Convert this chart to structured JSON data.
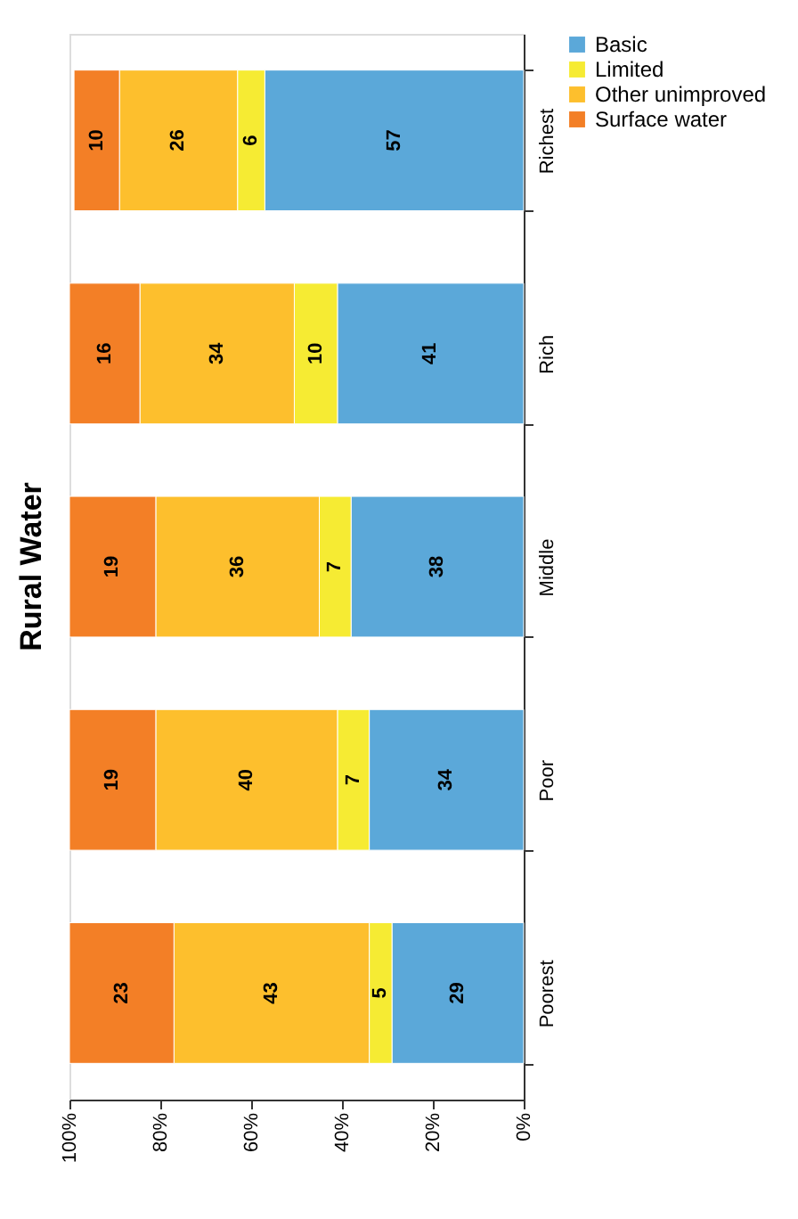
{
  "chart_data": {
    "type": "bar",
    "title": "Rural Water",
    "orientation": "horizontal",
    "stacked": true,
    "categories": [
      "Richest",
      "Rich",
      "Middle",
      "Poor",
      "Poorest"
    ],
    "series": [
      {
        "name": "Basic",
        "color": "#5ba8d9",
        "values": [
          57,
          41,
          38,
          34,
          29
        ],
        "value_labels": [
          "57",
          "41",
          "38",
          "34",
          "29"
        ]
      },
      {
        "name": "Limited",
        "color": "#f6eb33",
        "values": [
          6,
          9.5,
          7,
          7,
          5
        ],
        "value_labels": [
          "6",
          "10",
          "7",
          "7",
          "5"
        ]
      },
      {
        "name": "Other unimproved",
        "color": "#fdbf2d",
        "values": [
          26,
          34,
          36,
          40,
          43
        ],
        "value_labels": [
          "26",
          "34",
          "36",
          "40",
          "43"
        ]
      },
      {
        "name": "Surface water",
        "color": "#f37f26",
        "values": [
          10,
          15.5,
          19,
          19,
          23
        ],
        "value_labels": [
          "10",
          "16",
          "19",
          "19",
          "23"
        ]
      }
    ],
    "xlim": [
      100,
      0
    ],
    "xticks": [
      {
        "value": 100,
        "label": "100%"
      },
      {
        "value": 80,
        "label": "80%"
      },
      {
        "value": 60,
        "label": "60%"
      },
      {
        "value": 40,
        "label": "40%"
      },
      {
        "value": 20,
        "label": "20%"
      },
      {
        "value": 0,
        "label": "0%"
      }
    ],
    "grid": false,
    "legend": "right"
  }
}
